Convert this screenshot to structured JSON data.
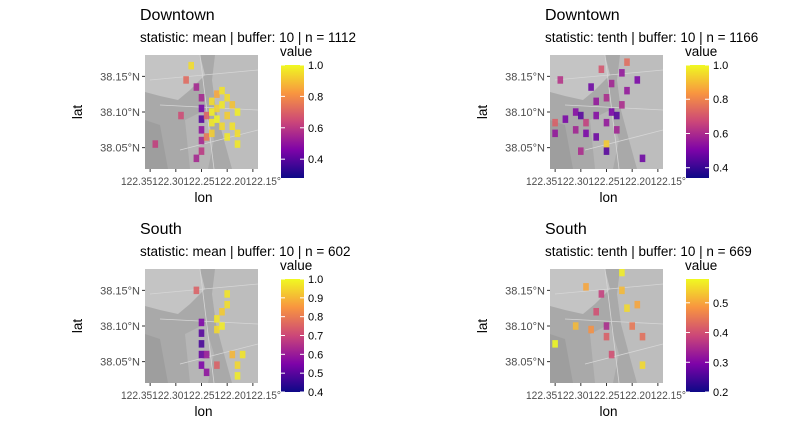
{
  "chart_data": [
    {
      "type": "heatmap",
      "title": "Downtown",
      "subtitle": "statistic: mean | buffer: 10 | n = 1112",
      "xlabel": "lon",
      "ylabel": "lat",
      "x_ticks": [
        -122.35,
        -122.3,
        -122.25,
        -122.2,
        -122.15
      ],
      "x_tick_labels": [
        "122.35°W",
        "122.30°W",
        "122.25°W",
        "122.20°W",
        "122.15°W"
      ],
      "x_tick_labels_shown": "122.35122.30122.25122.20122.15°",
      "y_ticks": [
        38.05,
        38.1,
        38.15
      ],
      "y_tick_labels": [
        "38.05°N",
        "38.10°N",
        "38.15°N"
      ],
      "xlim": [
        -122.36,
        -122.14
      ],
      "ylim": [
        38.02,
        38.18
      ],
      "legend": {
        "title": "value",
        "position": "right",
        "range": [
          0.28,
          1.0
        ],
        "ticks": [
          "0.4",
          "0.6",
          "0.8",
          "1.0"
        ]
      },
      "colormap": "plasma",
      "cells": [
        {
          "lon": -122.34,
          "lat": 38.055,
          "value": 0.62
        },
        {
          "lon": -122.27,
          "lat": 38.165,
          "value": 0.95
        },
        {
          "lon": -122.28,
          "lat": 38.145,
          "value": 0.72
        },
        {
          "lon": -122.26,
          "lat": 38.135,
          "value": 0.55
        },
        {
          "lon": -122.29,
          "lat": 38.095,
          "value": 0.65
        },
        {
          "lon": -122.25,
          "lat": 38.12,
          "value": 0.55
        },
        {
          "lon": -122.25,
          "lat": 38.105,
          "value": 0.45
        },
        {
          "lon": -122.25,
          "lat": 38.09,
          "value": 0.4
        },
        {
          "lon": -122.25,
          "lat": 38.075,
          "value": 0.5
        },
        {
          "lon": -122.25,
          "lat": 38.06,
          "value": 0.55
        },
        {
          "lon": -122.25,
          "lat": 38.045,
          "value": 0.6
        },
        {
          "lon": -122.26,
          "lat": 38.035,
          "value": 0.55
        },
        {
          "lon": -122.24,
          "lat": 38.095,
          "value": 0.7
        },
        {
          "lon": -122.24,
          "lat": 38.065,
          "value": 0.75
        },
        {
          "lon": -122.23,
          "lat": 38.115,
          "value": 0.95
        },
        {
          "lon": -122.23,
          "lat": 38.1,
          "value": 0.98
        },
        {
          "lon": -122.23,
          "lat": 38.085,
          "value": 0.97
        },
        {
          "lon": -122.23,
          "lat": 38.07,
          "value": 0.92
        },
        {
          "lon": -122.22,
          "lat": 38.125,
          "value": 0.85
        },
        {
          "lon": -122.22,
          "lat": 38.105,
          "value": 0.93
        },
        {
          "lon": -122.22,
          "lat": 38.09,
          "value": 0.99
        },
        {
          "lon": -122.21,
          "lat": 38.13,
          "value": 0.96
        },
        {
          "lon": -122.21,
          "lat": 38.11,
          "value": 0.97
        },
        {
          "lon": -122.21,
          "lat": 38.08,
          "value": 0.94
        },
        {
          "lon": -122.2,
          "lat": 38.12,
          "value": 0.95
        },
        {
          "lon": -122.2,
          "lat": 38.095,
          "value": 0.92
        },
        {
          "lon": -122.2,
          "lat": 38.065,
          "value": 0.97
        },
        {
          "lon": -122.19,
          "lat": 38.11,
          "value": 0.9
        },
        {
          "lon": -122.19,
          "lat": 38.08,
          "value": 0.96
        },
        {
          "lon": -122.18,
          "lat": 38.1,
          "value": 0.98
        },
        {
          "lon": -122.18,
          "lat": 38.07,
          "value": 0.95
        },
        {
          "lon": -122.18,
          "lat": 38.055,
          "value": 0.97
        }
      ]
    },
    {
      "type": "heatmap",
      "title": "Downtown",
      "subtitle": "statistic: tenth | buffer: 10 | n = 1166",
      "xlabel": "lon",
      "ylabel": "lat",
      "x_ticks": [
        -122.35,
        -122.3,
        -122.25,
        -122.2,
        -122.15
      ],
      "x_tick_labels": [
        "122.35°W",
        "122.30°W",
        "122.25°W",
        "122.20°W",
        "122.15°W"
      ],
      "x_tick_labels_shown": "122.35122.30122.25122.20122.15°",
      "y_ticks": [
        38.05,
        38.1,
        38.15
      ],
      "y_tick_labels": [
        "38.05°N",
        "38.10°N",
        "38.15°N"
      ],
      "xlim": [
        -122.36,
        -122.14
      ],
      "ylim": [
        38.02,
        38.18
      ],
      "legend": {
        "title": "value",
        "position": "right",
        "range": [
          0.34,
          1.0
        ],
        "ticks": [
          "0.4",
          "0.6",
          "0.8",
          "1.0"
        ]
      },
      "colormap": "plasma",
      "cells": [
        {
          "lon": -122.34,
          "lat": 38.145,
          "value": 0.62
        },
        {
          "lon": -122.35,
          "lat": 38.085,
          "value": 0.72
        },
        {
          "lon": -122.35,
          "lat": 38.07,
          "value": 0.55
        },
        {
          "lon": -122.33,
          "lat": 38.09,
          "value": 0.5
        },
        {
          "lon": -122.31,
          "lat": 38.1,
          "value": 0.52
        },
        {
          "lon": -122.31,
          "lat": 38.075,
          "value": 0.58
        },
        {
          "lon": -122.3,
          "lat": 38.095,
          "value": 0.45
        },
        {
          "lon": -122.3,
          "lat": 38.045,
          "value": 0.6
        },
        {
          "lon": -122.29,
          "lat": 38.085,
          "value": 0.65
        },
        {
          "lon": -122.29,
          "lat": 38.07,
          "value": 0.5
        },
        {
          "lon": -122.28,
          "lat": 38.135,
          "value": 0.48
        },
        {
          "lon": -122.27,
          "lat": 38.115,
          "value": 0.55
        },
        {
          "lon": -122.27,
          "lat": 38.095,
          "value": 0.52
        },
        {
          "lon": -122.27,
          "lat": 38.065,
          "value": 0.48
        },
        {
          "lon": -122.26,
          "lat": 38.16,
          "value": 0.7
        },
        {
          "lon": -122.25,
          "lat": 38.12,
          "value": 0.6
        },
        {
          "lon": -122.25,
          "lat": 38.085,
          "value": 0.55
        },
        {
          "lon": -122.25,
          "lat": 38.055,
          "value": 0.92
        },
        {
          "lon": -122.25,
          "lat": 38.045,
          "value": 0.45
        },
        {
          "lon": -122.24,
          "lat": 38.14,
          "value": 0.58
        },
        {
          "lon": -122.24,
          "lat": 38.1,
          "value": 0.5
        },
        {
          "lon": -122.23,
          "lat": 38.075,
          "value": 0.58
        },
        {
          "lon": -122.23,
          "lat": 38.095,
          "value": 0.45
        },
        {
          "lon": -122.22,
          "lat": 38.155,
          "value": 0.55
        },
        {
          "lon": -122.22,
          "lat": 38.11,
          "value": 0.6
        },
        {
          "lon": -122.21,
          "lat": 38.17,
          "value": 0.75
        },
        {
          "lon": -122.21,
          "lat": 38.13,
          "value": 0.55
        },
        {
          "lon": -122.19,
          "lat": 38.145,
          "value": 0.5
        },
        {
          "lon": -122.18,
          "lat": 38.035,
          "value": 0.48
        }
      ]
    },
    {
      "type": "heatmap",
      "title": "South",
      "subtitle": "statistic: mean | buffer: 10 | n = 602",
      "xlabel": "lon",
      "ylabel": "lat",
      "x_ticks": [
        -122.35,
        -122.3,
        -122.25,
        -122.2,
        -122.15
      ],
      "x_tick_labels": [
        "122.35°W",
        "122.30°W",
        "122.25°W",
        "122.20°W",
        "122.15°W"
      ],
      "x_tick_labels_shown": "122.35122.30122.25122.20122.15°",
      "y_ticks": [
        38.05,
        38.1,
        38.15
      ],
      "y_tick_labels": [
        "38.05°N",
        "38.10°N",
        "38.15°N"
      ],
      "xlim": [
        -122.36,
        -122.14
      ],
      "ylim": [
        38.02,
        38.18
      ],
      "legend": {
        "title": "value",
        "position": "right",
        "range": [
          0.4,
          1.0
        ],
        "ticks": [
          "0.4",
          "0.5",
          "0.6",
          "0.7",
          "0.8",
          "0.9",
          "1.0"
        ]
      },
      "colormap": "plasma",
      "cells": [
        {
          "lon": -122.26,
          "lat": 38.15,
          "value": 0.75
        },
        {
          "lon": -122.25,
          "lat": 38.105,
          "value": 0.55
        },
        {
          "lon": -122.25,
          "lat": 38.09,
          "value": 0.5
        },
        {
          "lon": -122.25,
          "lat": 38.075,
          "value": 0.48
        },
        {
          "lon": -122.25,
          "lat": 38.06,
          "value": 0.52
        },
        {
          "lon": -122.25,
          "lat": 38.045,
          "value": 0.55
        },
        {
          "lon": -122.24,
          "lat": 38.06,
          "value": 0.6
        },
        {
          "lon": -122.24,
          "lat": 38.035,
          "value": 0.58
        },
        {
          "lon": -122.22,
          "lat": 38.045,
          "value": 0.75
        },
        {
          "lon": -122.22,
          "lat": 38.11,
          "value": 0.97
        },
        {
          "lon": -122.22,
          "lat": 38.095,
          "value": 0.95
        },
        {
          "lon": -122.21,
          "lat": 38.12,
          "value": 0.93
        },
        {
          "lon": -122.21,
          "lat": 38.1,
          "value": 0.98
        },
        {
          "lon": -122.2,
          "lat": 38.145,
          "value": 0.97
        },
        {
          "lon": -122.2,
          "lat": 38.13,
          "value": 0.96
        },
        {
          "lon": -122.19,
          "lat": 38.06,
          "value": 0.9
        },
        {
          "lon": -122.18,
          "lat": 38.045,
          "value": 0.95
        },
        {
          "lon": -122.18,
          "lat": 38.03,
          "value": 0.98
        },
        {
          "lon": -122.17,
          "lat": 38.06,
          "value": 0.97
        }
      ]
    },
    {
      "type": "heatmap",
      "title": "South",
      "subtitle": "statistic: tenth | buffer: 10 | n = 669",
      "xlabel": "lon",
      "ylabel": "lat",
      "x_ticks": [
        -122.35,
        -122.3,
        -122.25,
        -122.2,
        -122.15
      ],
      "x_tick_labels": [
        "122.35°W",
        "122.30°W",
        "122.25°W",
        "122.20°W",
        "122.15°W"
      ],
      "x_tick_labels_shown": "122.35122.30122.25122.20122.15°",
      "y_ticks": [
        38.05,
        38.1,
        38.15
      ],
      "y_tick_labels": [
        "38.05°N",
        "38.10°N",
        "38.15°N"
      ],
      "xlim": [
        -122.36,
        -122.14
      ],
      "ylim": [
        38.02,
        38.18
      ],
      "legend": {
        "title": "value",
        "position": "right",
        "range": [
          0.2,
          0.58
        ],
        "ticks": [
          "0.2",
          "0.3",
          "0.4",
          "0.5"
        ]
      },
      "colormap": "plasma",
      "cells": [
        {
          "lon": -122.35,
          "lat": 38.075,
          "value": 0.58
        },
        {
          "lon": -122.31,
          "lat": 38.1,
          "value": 0.52
        },
        {
          "lon": -122.29,
          "lat": 38.155,
          "value": 0.5
        },
        {
          "lon": -122.28,
          "lat": 38.095,
          "value": 0.48
        },
        {
          "lon": -122.27,
          "lat": 38.12,
          "value": 0.4
        },
        {
          "lon": -122.26,
          "lat": 38.145,
          "value": 0.38
        },
        {
          "lon": -122.25,
          "lat": 38.1,
          "value": 0.35
        },
        {
          "lon": -122.25,
          "lat": 38.085,
          "value": 0.42
        },
        {
          "lon": -122.24,
          "lat": 38.06,
          "value": 0.4
        },
        {
          "lon": -122.22,
          "lat": 38.175,
          "value": 0.57
        },
        {
          "lon": -122.22,
          "lat": 38.15,
          "value": 0.52
        },
        {
          "lon": -122.21,
          "lat": 38.125,
          "value": 0.55
        },
        {
          "lon": -122.2,
          "lat": 38.1,
          "value": 0.45
        },
        {
          "lon": -122.19,
          "lat": 38.13,
          "value": 0.5
        },
        {
          "lon": -122.18,
          "lat": 38.085,
          "value": 0.44
        },
        {
          "lon": -122.18,
          "lat": 38.045,
          "value": 0.55
        }
      ]
    }
  ]
}
